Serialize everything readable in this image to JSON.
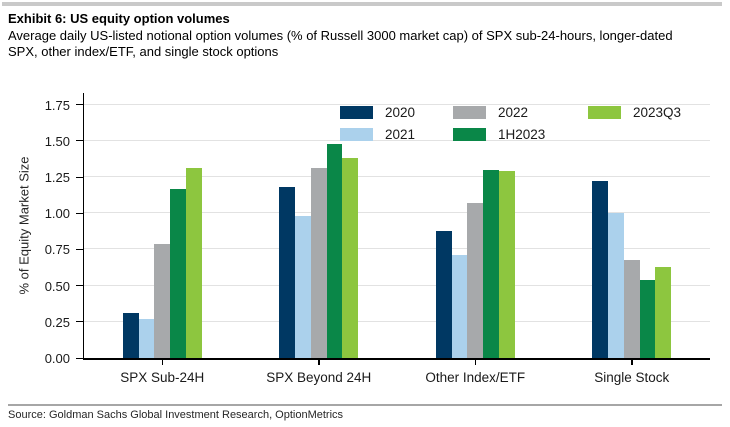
{
  "header": {
    "title": "Exhibit 6: US equity option volumes",
    "subtitle_line1": "Average daily US-listed notional option volumes (% of Russell 3000 market cap) of SPX sub-24-hours, longer-dated",
    "subtitle_line2": "SPX, other index/ETF, and single stock options"
  },
  "footer": {
    "source": "Source: Goldman Sachs Global Investment Research, OptionMetrics"
  },
  "chart_data": {
    "type": "bar",
    "title": "Exhibit 6: US equity option volumes",
    "xlabel": "",
    "ylabel": "% of Equity Market Size",
    "categories": [
      "SPX Sub-24H",
      "SPX Beyond 24H",
      "Other Index/ETF",
      "Single Stock"
    ],
    "series": [
      {
        "name": "2020",
        "color": "#003863",
        "values": [
          0.31,
          1.18,
          0.88,
          1.22
        ]
      },
      {
        "name": "2021",
        "color": "#abd1ec",
        "values": [
          0.27,
          0.98,
          0.71,
          1.0
        ]
      },
      {
        "name": "2022",
        "color": "#a7a9ab",
        "values": [
          0.79,
          1.31,
          1.07,
          0.68
        ]
      },
      {
        "name": "1H2023",
        "color": "#0a8748",
        "values": [
          1.17,
          1.48,
          1.3,
          0.54
        ]
      },
      {
        "name": "2023Q3",
        "color": "#8dc63f",
        "values": [
          1.31,
          1.38,
          1.29,
          0.63
        ]
      }
    ],
    "ylim": [
      0,
      1.83
    ],
    "yticks": [
      0,
      0.25,
      0.5,
      0.75,
      1.0,
      1.25,
      1.5,
      1.75
    ],
    "grid": "horizontal",
    "legend_position": "top-inside",
    "legend_columns": [
      [
        "2020",
        "2021"
      ],
      [
        "2022",
        "1H2023"
      ],
      [
        "2023Q3"
      ]
    ]
  }
}
